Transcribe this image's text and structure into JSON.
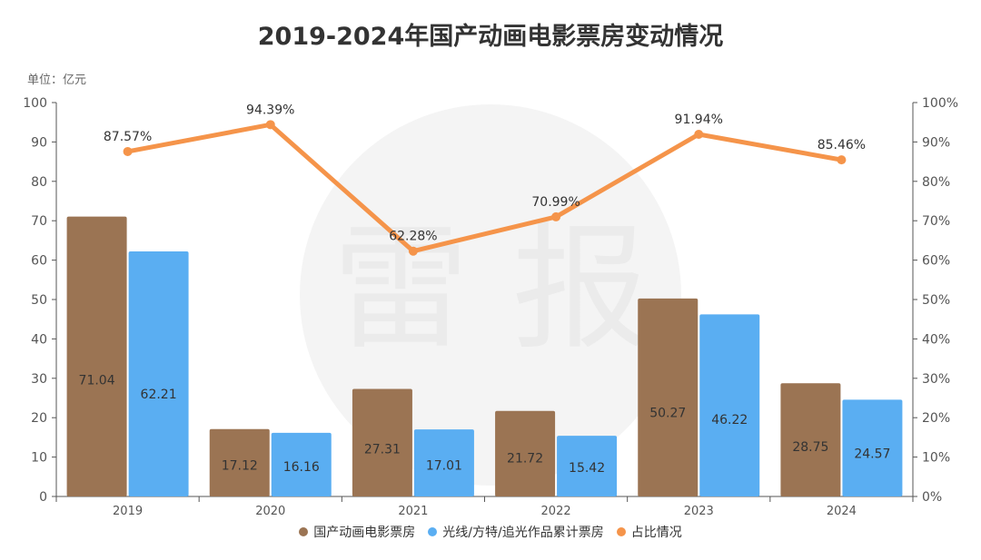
{
  "title": "2019-2024年国产动画电影票房变动情况",
  "unit_label": "单位：亿元",
  "watermark": "雷 报",
  "colors": {
    "domestic": "#9B7453",
    "light_chaser": "#5AAEF2",
    "share": "#F5944A",
    "axis": "#555555"
  },
  "chart_data": {
    "type": "bar",
    "categories": [
      "2019",
      "2020",
      "2021",
      "2022",
      "2023",
      "2024"
    ],
    "series": [
      {
        "name": "国产动画电影票房",
        "type": "bar",
        "axis": "left",
        "values": [
          71.04,
          17.12,
          27.31,
          21.72,
          50.27,
          28.75
        ]
      },
      {
        "name": "光线/方特/追光作品累计票房",
        "type": "bar",
        "axis": "left",
        "values": [
          62.21,
          16.16,
          17.01,
          15.42,
          46.22,
          24.57
        ]
      },
      {
        "name": "占比情况",
        "type": "line",
        "axis": "right",
        "values": [
          87.57,
          94.39,
          62.28,
          70.99,
          91.94,
          85.46
        ]
      }
    ],
    "left_axis": {
      "range": [
        0,
        100
      ],
      "ticks": [
        "0",
        "10",
        "20",
        "30",
        "40",
        "50",
        "60",
        "70",
        "80",
        "90",
        "100"
      ]
    },
    "right_axis": {
      "range": [
        0,
        100
      ],
      "ticks": [
        "0%",
        "10%",
        "20%",
        "30%",
        "40%",
        "50%",
        "60%",
        "70%",
        "80%",
        "90%",
        "100%"
      ]
    },
    "bar_labels": [
      [
        "71.04",
        "17.12",
        "27.31",
        "21.72",
        "50.27",
        "28.75"
      ],
      [
        "62.21",
        "16.16",
        "17.01",
        "15.42",
        "46.22",
        "24.57"
      ]
    ],
    "line_labels": [
      "87.57%",
      "94.39%",
      "62.28%",
      "70.99%",
      "91.94%",
      "85.46%"
    ],
    "legend_position": "bottom",
    "grid": false
  }
}
